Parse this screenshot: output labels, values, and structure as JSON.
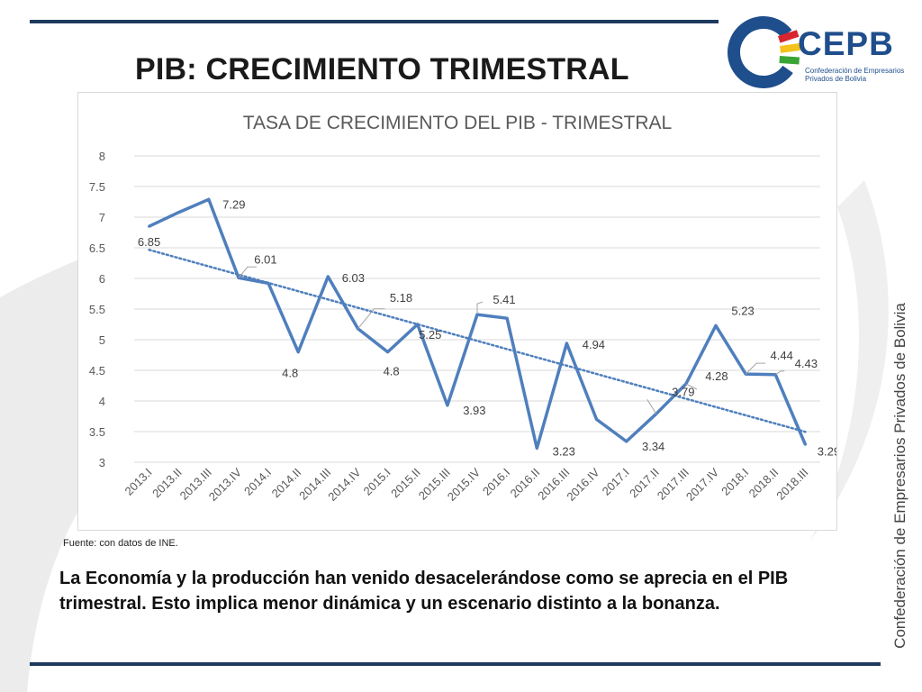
{
  "slide": {
    "title": "PIB: CRECIMIENTO TRIMESTRAL",
    "source": "Fuente: con datos de INE.",
    "body": "La Economía y la producción han venido desacelerándose como se aprecia en el PIB trimestral. Esto implica menor dinámica y un escenario distinto a la bonanza.",
    "side_text": "Confederación de Empresarios Privados de Bolivia"
  },
  "logo": {
    "name": "CEPB",
    "subtitle_line1": "Confederación de Empresarios",
    "subtitle_line2": "Privados de Bolivia",
    "colors": {
      "blue": "#1f4e8c",
      "red": "#d7262e",
      "yellow": "#f4c21a",
      "green": "#3aa535"
    }
  },
  "colors": {
    "line": "#4f7fbd",
    "rule": "#1f3a5f",
    "grid": "#d9d9d9"
  },
  "chart_data": {
    "type": "line",
    "title": "TASA DE CRECIMIENTO DEL PIB - TRIMESTRAL",
    "categories": [
      "2013.I",
      "2013.II",
      "2013.III",
      "2013.IV",
      "2014.I",
      "2014.II",
      "2014.III",
      "2014.IV",
      "2015.I",
      "2015.II",
      "2015.III",
      "2015.IV",
      "2016.I",
      "2016.II",
      "2016.III",
      "2016.IV",
      "2017.I",
      "2017.II",
      "2017.III",
      "2017.IV",
      "2018.I",
      "2018.II",
      "2018.III"
    ],
    "series": [
      {
        "values": [
          6.85,
          7.08,
          7.29,
          6.01,
          5.92,
          4.8,
          6.03,
          5.18,
          4.8,
          5.25,
          3.93,
          5.41,
          5.35,
          3.23,
          4.94,
          3.7,
          3.34,
          3.79,
          4.28,
          5.23,
          4.44,
          4.43,
          3.29
        ],
        "data_labels": [
          "6.85",
          "",
          "7.29",
          "6.01",
          "",
          "4.8",
          "6.03",
          "5.18",
          "4.8",
          "5.25",
          "3.93",
          "5.41",
          "",
          "3.23",
          "4.94",
          "",
          "3.34",
          "3.79",
          "4.28",
          "5.23",
          "4.44",
          "4.43",
          "3.29"
        ]
      }
    ],
    "trendline": {
      "type": "linear",
      "style": "dotted"
    },
    "ylim": [
      3,
      8
    ],
    "yticks": [
      "3",
      "3.5",
      "4",
      "4.5",
      "5",
      "5.5",
      "6",
      "6.5",
      "7",
      "7.5",
      "8"
    ],
    "xlabel": "",
    "ylabel": "",
    "grid": true,
    "legend": "none"
  }
}
